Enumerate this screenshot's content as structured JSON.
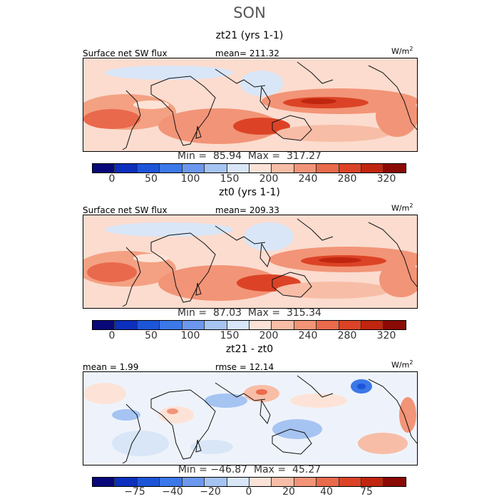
{
  "season": "SON",
  "palettes": {
    "abs": [
      "#08087a",
      "#0c2fbd",
      "#1d55d9",
      "#3b78e8",
      "#6b98ee",
      "#a6c4f2",
      "#d8e6f8",
      "#fde3d7",
      "#f8bda6",
      "#f29477",
      "#ea6a4c",
      "#dc4326",
      "#c0260f",
      "#8a0a05"
    ],
    "diff": [
      "#08087a",
      "#0c2fbd",
      "#1d55d9",
      "#3b78e8",
      "#6b98ee",
      "#a6c4f2",
      "#d8e6f8",
      "#fde3d7",
      "#f8bda6",
      "#f29477",
      "#ea6a4c",
      "#dc4326",
      "#c0260f",
      "#8a0a05"
    ]
  },
  "panels": [
    {
      "title": "zt21 (yrs 1-1)",
      "variable": "Surface net SW flux",
      "stat": "mean=  211.32",
      "units": "W/m",
      "units_exp": "2",
      "minmax": "Min =  85.94  Max =  317.27",
      "ticks": [
        "0",
        "50",
        "100",
        "150",
        "200",
        "240",
        "280",
        "320"
      ]
    },
    {
      "title": "zt0 (yrs 1-1)",
      "variable": "Surface net SW flux",
      "stat": "mean=  209.33",
      "units": "W/m",
      "units_exp": "2",
      "minmax": "Min =  87.03  Max =  315.34",
      "ticks": [
        "0",
        "50",
        "100",
        "150",
        "200",
        "240",
        "280",
        "320"
      ]
    },
    {
      "title": "zt21 - zt0",
      "mean_label": "mean =    1.99",
      "rmse_label": "rmse =   12.14",
      "units": "W/m",
      "units_exp": "2",
      "minmax": "Min = −46.87  Max =  45.27",
      "ticks": [
        "−75",
        "−40",
        "−20",
        "0",
        "20",
        "40",
        "75"
      ]
    }
  ]
}
